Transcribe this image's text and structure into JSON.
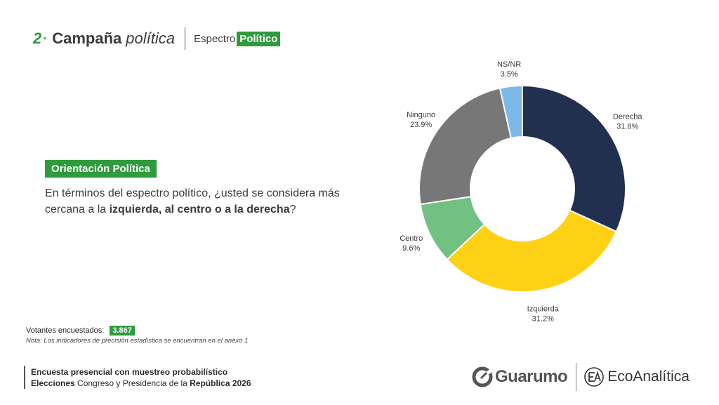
{
  "header": {
    "number": "2",
    "title": "Campaña",
    "title_italic": "política",
    "subtitle_a": "Espectro",
    "subtitle_b": "Político"
  },
  "question": {
    "badge": "Orientación Política",
    "text_pre": "En términos del espectro político, ¿usted se considera más cercana a la ",
    "text_bold": "izquierda, al centro o a la derecha",
    "text_post": "?"
  },
  "sample": {
    "label": "Votantes encuestados:",
    "value": "3.867",
    "note": "Nota: Los indicadores de precisión estadística se encuentran en el anexo 1"
  },
  "footer": {
    "line1": "Encuesta presencial con muestreo probabilístico",
    "line2_bold_a": "Elecciones",
    "line2_mid": " Congreso y Presidencia de la ",
    "line2_bold_b": "República 2026"
  },
  "logos": {
    "guarumo": "Guarumo",
    "ecoanalitica": "EcoAnalítica"
  },
  "chart_data": {
    "type": "pie",
    "variant": "donut",
    "categories": [
      "Derecha",
      "Izquierda",
      "Centro",
      "Ninguno",
      "NS/NR"
    ],
    "values": [
      31.8,
      31.2,
      9.6,
      23.9,
      3.5
    ],
    "value_labels": [
      "31.8%",
      "31.2%",
      "9.6%",
      "23.9%",
      "3.5%"
    ],
    "colors": [
      "#22304f",
      "#ffd115",
      "#72c082",
      "#777777",
      "#7cb9e8"
    ],
    "start": "top",
    "direction": "clockwise"
  }
}
